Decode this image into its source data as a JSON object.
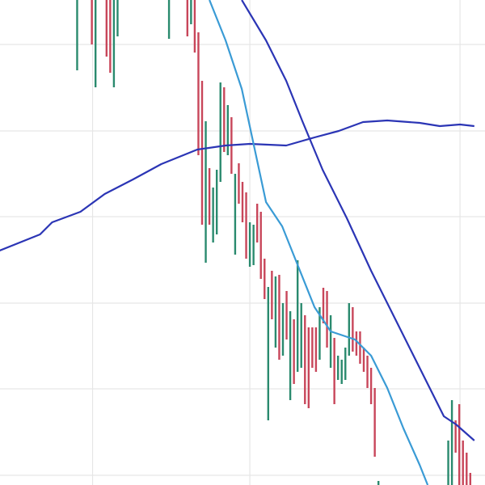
{
  "chart_data": {
    "type": "line",
    "subtype": "ohlc-range-bars-with-moving-averages",
    "title": "",
    "xlabel": "",
    "ylabel": "",
    "xlim": [
      -21,
      111
    ],
    "ylim": [
      0,
      60
    ],
    "grid": true,
    "grid_x": [
      4.2,
      47,
      104.2
    ],
    "grid_y": [
      1.2,
      11.9,
      22.5,
      33.2,
      43.8,
      54.5
    ],
    "colors": {
      "up": "#2a8a6e",
      "down": "#c8465a",
      "ma_dark": "#2b35b5",
      "ma_light": "#3a9bd5",
      "grid": "#e6e6e6"
    },
    "bars_format": [
      "x",
      "high",
      "low",
      "direction"
    ],
    "bars": [
      [
        0,
        62,
        51.3,
        "up"
      ],
      [
        4,
        62,
        54.5,
        "down"
      ],
      [
        5,
        62,
        49.2,
        "up"
      ],
      [
        8,
        62,
        53,
        "down"
      ],
      [
        9,
        62,
        51,
        "down"
      ],
      [
        10,
        62,
        49.2,
        "up"
      ],
      [
        11,
        62,
        55.5,
        "up"
      ],
      [
        25,
        62,
        55.2,
        "up"
      ],
      [
        30,
        62,
        55.5,
        "down"
      ],
      [
        31,
        62,
        57,
        "up"
      ],
      [
        32,
        62,
        53.5,
        "down"
      ],
      [
        33,
        56,
        40.8,
        "down"
      ],
      [
        34,
        50,
        32.2,
        "down"
      ],
      [
        35,
        45,
        27.5,
        "up"
      ],
      [
        36,
        39.2,
        32.2,
        "down"
      ],
      [
        37,
        36.8,
        30,
        "up"
      ],
      [
        38,
        39,
        31,
        "up"
      ],
      [
        39,
        49.8,
        37.5,
        "up"
      ],
      [
        40,
        49.2,
        41.2,
        "down"
      ],
      [
        41,
        47,
        40.8,
        "up"
      ],
      [
        42,
        45.5,
        38.5,
        "down"
      ],
      [
        43,
        38.5,
        28.5,
        "up"
      ],
      [
        44,
        39.8,
        34.8,
        "down"
      ],
      [
        45,
        37.5,
        32.5,
        "down"
      ],
      [
        46,
        36.2,
        28,
        "down"
      ],
      [
        47,
        32.5,
        27,
        "up"
      ],
      [
        48,
        32.2,
        27.2,
        "up"
      ],
      [
        49,
        34.8,
        30,
        "down"
      ],
      [
        50,
        33.8,
        25.5,
        "down"
      ],
      [
        51,
        28,
        23,
        "down"
      ],
      [
        52,
        24.5,
        8,
        "up"
      ],
      [
        53,
        26.5,
        20.5,
        "down"
      ],
      [
        54,
        25.8,
        17,
        "up"
      ],
      [
        55,
        26,
        15.5,
        "down"
      ],
      [
        56,
        22.5,
        16,
        "up"
      ],
      [
        57,
        24,
        18,
        "down"
      ],
      [
        58,
        21.5,
        10.5,
        "up"
      ],
      [
        59,
        20.5,
        12.5,
        "down"
      ],
      [
        60,
        27.8,
        14,
        "up"
      ],
      [
        61,
        22.5,
        14.5,
        "up"
      ],
      [
        62,
        21,
        10,
        "down"
      ],
      [
        63,
        19.5,
        9.5,
        "down"
      ],
      [
        64,
        19.5,
        14.5,
        "down"
      ],
      [
        65,
        19.5,
        14,
        "down"
      ],
      [
        66,
        22,
        15.5,
        "up"
      ],
      [
        67,
        24.4,
        20,
        "down"
      ],
      [
        68,
        24,
        17,
        "down"
      ],
      [
        69,
        21,
        14.5,
        "up"
      ],
      [
        70,
        18.2,
        10,
        "down"
      ],
      [
        71,
        16,
        13,
        "up"
      ],
      [
        72,
        15.5,
        12.5,
        "up"
      ],
      [
        73,
        17,
        13,
        "up"
      ],
      [
        74,
        22.5,
        16,
        "up"
      ],
      [
        75,
        22,
        16.5,
        "down"
      ],
      [
        76,
        19,
        16,
        "down"
      ],
      [
        77,
        19,
        15,
        "down"
      ],
      [
        78,
        17,
        14,
        "down"
      ],
      [
        79,
        16,
        12,
        "down"
      ],
      [
        80,
        14.5,
        10,
        "down"
      ],
      [
        81,
        12,
        3.5,
        "down"
      ],
      [
        82,
        0.5,
        -1,
        "up"
      ],
      [
        101,
        5.5,
        -1,
        "up"
      ],
      [
        102,
        10.5,
        -1,
        "up"
      ],
      [
        103,
        8,
        4,
        "down"
      ],
      [
        104,
        10,
        -1,
        "down"
      ],
      [
        105,
        5.5,
        -1,
        "down"
      ],
      [
        106,
        4,
        -1,
        "down"
      ],
      [
        107,
        1.5,
        -1,
        "down"
      ]
    ],
    "series": [
      {
        "style": "ma_dark",
        "points": [
          [
            -21.1,
            29
          ],
          [
            -10.1,
            31
          ],
          [
            -6.8,
            32.5
          ],
          [
            0.9,
            33.8
          ],
          [
            7.5,
            36
          ],
          [
            15.2,
            37.8
          ],
          [
            22.9,
            39.7
          ],
          [
            32.7,
            41.5
          ],
          [
            40.4,
            42
          ],
          [
            47,
            42.2
          ],
          [
            56.9,
            42
          ],
          [
            64.6,
            43
          ],
          [
            71.2,
            43.8
          ],
          [
            77.8,
            44.9
          ],
          [
            84.4,
            45.1
          ],
          [
            93.2,
            44.8
          ],
          [
            98.7,
            44.4
          ],
          [
            104.2,
            44.6
          ],
          [
            108.1,
            44.4
          ]
        ]
      },
      {
        "style": "ma_dark",
        "points": [
          [
            44.8,
            60
          ],
          [
            51.4,
            55
          ],
          [
            56.9,
            50
          ],
          [
            61.3,
            45
          ],
          [
            66.8,
            39
          ],
          [
            73.4,
            33
          ],
          [
            80,
            26.5
          ],
          [
            86.6,
            20.5
          ],
          [
            91,
            16.5
          ],
          [
            95.4,
            12.5
          ],
          [
            99.8,
            8.5
          ],
          [
            103.1,
            7.5
          ],
          [
            108.1,
            5.5
          ]
        ]
      },
      {
        "style": "ma_light",
        "points": [
          [
            36,
            60
          ],
          [
            40.4,
            55
          ],
          [
            44.8,
            49
          ],
          [
            48.1,
            42
          ],
          [
            51.4,
            35
          ],
          [
            55.8,
            32
          ],
          [
            60.2,
            27
          ],
          [
            64.6,
            22
          ],
          [
            69,
            19
          ],
          [
            75.6,
            18
          ],
          [
            80,
            16
          ],
          [
            84.4,
            12
          ],
          [
            88.8,
            7
          ],
          [
            93.2,
            2.5
          ],
          [
            95.4,
            0
          ]
        ]
      }
    ]
  }
}
